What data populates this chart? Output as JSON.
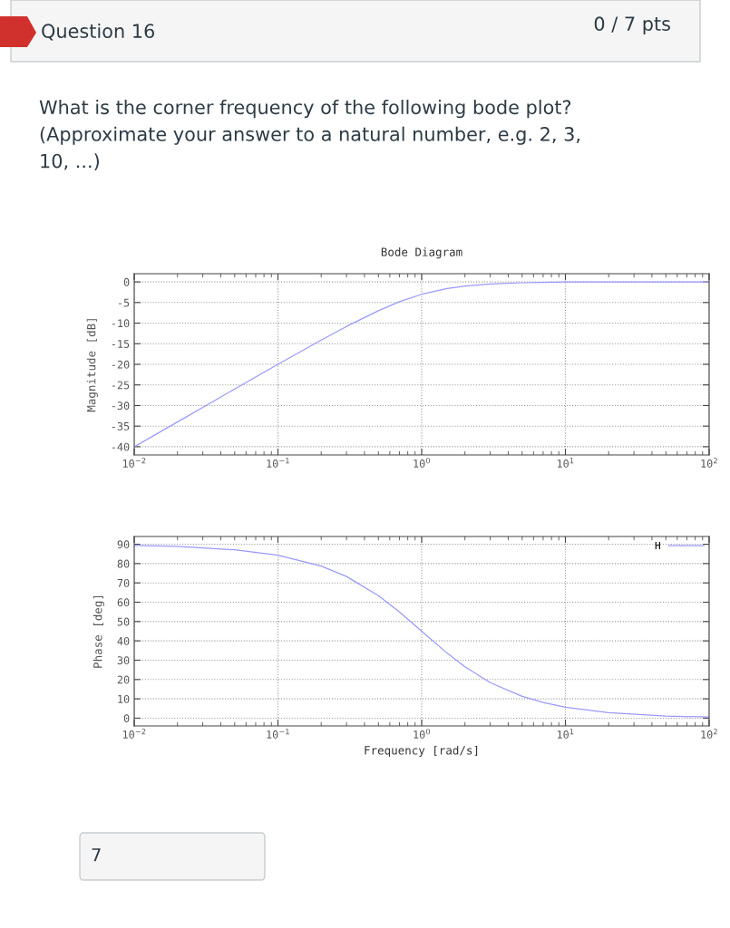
{
  "chart_data": [
    {
      "type": "line",
      "title": "Bode Diagram",
      "ylabel": "Magnitude [dB]",
      "log": "x",
      "annotations": [
        "Question 16",
        "0 / 7 pts",
        "What is the corner frequency of the following bode plot?\n(Approximate your answer to a natural number, e.g. 2, 3,\n10, ...)"
      ],
      "x": [
        0.01,
        0.02,
        0.05,
        0.1,
        0.2,
        0.3,
        0.5,
        0.7,
        1,
        1.5,
        2,
        3,
        5,
        7,
        10,
        20,
        50,
        100
      ],
      "series": [
        {
          "color": "#9999ff",
          "values": [
            -40,
            -34,
            -26,
            -20,
            -14.1,
            -10.8,
            -7,
            -4.8,
            -3,
            -1.6,
            -1,
            -0.5,
            -0.2,
            -0.1,
            0,
            0,
            0,
            0
          ]
        }
      ],
      "xlim": [
        0.01,
        100
      ],
      "xticks": [
        {
          "value": 0.01,
          "label": "10$^{−2}$"
        },
        {
          "value": 0.1,
          "label": "10$^{−1}$"
        },
        {
          "value": 1,
          "label": "10$^{0}$"
        },
        {
          "value": 10,
          "label": "10$^{1}$"
        },
        {
          "value": 100,
          "label": "10$^{2}$"
        }
      ],
      "ylim": [
        -42,
        2
      ],
      "yticks": [
        -40,
        -35,
        -30,
        -25,
        -20,
        -15,
        -10,
        -5,
        0
      ],
      "grid": true
    },
    {
      "type": "line",
      "xlabel": "Frequency [rad/s]",
      "ylabel": "Phase [deg]",
      "log": "x",
      "legend": "top right",
      "annotations": [
        "7"
      ],
      "x": [
        0.01,
        0.02,
        0.05,
        0.1,
        0.2,
        0.3,
        0.5,
        0.7,
        1,
        1.5,
        2,
        3,
        5,
        7,
        10,
        20,
        50,
        100
      ],
      "series": [
        {
          "name": "H",
          "color": "#9999ff",
          "values": [
            89.4,
            88.9,
            87.1,
            84.3,
            78.7,
            73.3,
            63.4,
            55,
            45,
            33.7,
            26.6,
            18.4,
            11.3,
            8.1,
            5.7,
            2.9,
            1.1,
            0.6
          ]
        }
      ],
      "xlim": [
        0.01,
        100
      ],
      "xticks": [
        {
          "value": 0.01,
          "label": "10$^{−2}$"
        },
        {
          "value": 0.1,
          "label": "10$^{−1}$"
        },
        {
          "value": 1,
          "label": "10$^{0}$"
        },
        {
          "value": 10,
          "label": "10$^{1}$"
        },
        {
          "value": 100,
          "label": "10$^{2}$"
        }
      ],
      "ylim": [
        -4,
        94
      ],
      "yticks": [
        0,
        10,
        20,
        30,
        40,
        50,
        60,
        70,
        80,
        90
      ],
      "grid": true
    }
  ]
}
